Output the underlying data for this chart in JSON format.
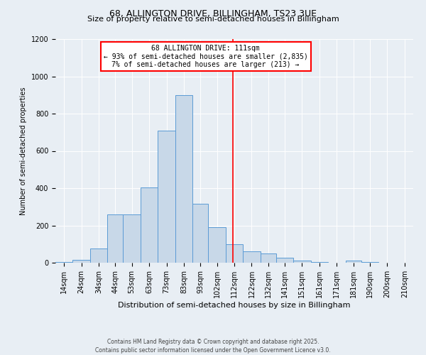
{
  "title": "68, ALLINGTON DRIVE, BILLINGHAM, TS23 3UE",
  "subtitle": "Size of property relative to semi-detached houses in Billingham",
  "xlabel": "Distribution of semi-detached houses by size in Billingham",
  "ylabel": "Number of semi-detached properties",
  "footnote": "Contains HM Land Registry data © Crown copyright and database right 2025.\nContains public sector information licensed under the Open Government Licence v3.0.",
  "annotation_title": "68 ALLINGTON DRIVE: 111sqm",
  "annotation_line1": "← 93% of semi-detached houses are smaller (2,835)",
  "annotation_line2": "7% of semi-detached houses are larger (213) →",
  "property_size": 111,
  "bar_labels": [
    "14sqm",
    "24sqm",
    "34sqm",
    "44sqm",
    "53sqm",
    "63sqm",
    "73sqm",
    "83sqm",
    "93sqm",
    "102sqm",
    "112sqm",
    "122sqm",
    "132sqm",
    "141sqm",
    "151sqm",
    "161sqm",
    "171sqm",
    "181sqm",
    "190sqm",
    "200sqm",
    "210sqm"
  ],
  "bar_values": [
    5,
    15,
    75,
    260,
    260,
    405,
    710,
    900,
    315,
    190,
    100,
    60,
    50,
    25,
    10,
    5,
    0,
    10,
    5,
    0,
    0
  ],
  "bin_edges": [
    9,
    19,
    29,
    39,
    48,
    58,
    68,
    78,
    88,
    97,
    107,
    117,
    127,
    136,
    146,
    156,
    166,
    176,
    185,
    195,
    205,
    215
  ],
  "bar_color": "#c8d8e8",
  "bar_edge_color": "#5b9bd5",
  "vline_color": "red",
  "vline_x": 111,
  "annotation_box_color": "red",
  "background_color": "#e8eef4",
  "ylim": [
    0,
    1200
  ],
  "yticks": [
    0,
    200,
    400,
    600,
    800,
    1000,
    1200
  ],
  "title_fontsize": 9,
  "subtitle_fontsize": 8,
  "ylabel_fontsize": 7,
  "xlabel_fontsize": 8,
  "footnote_fontsize": 5.5,
  "tick_fontsize": 7,
  "annotation_fontsize": 7
}
